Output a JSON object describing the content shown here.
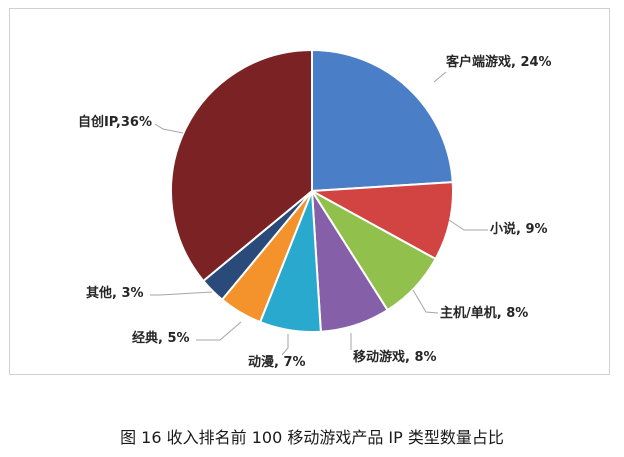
{
  "caption": "图 16  收入排名前 100 移动游戏产品 IP 类型数量占比",
  "chart_data": {
    "type": "pie",
    "title": "",
    "slices": [
      {
        "label": "客户端游戏, 24%",
        "value": 24,
        "color": "#4a7ec6"
      },
      {
        "label": "小说, 9%",
        "value": 9,
        "color": "#d24441"
      },
      {
        "label": "主机/单机, 8%",
        "value": 8,
        "color": "#92c04c"
      },
      {
        "label": "移动游戏, 8%",
        "value": 8,
        "color": "#8560a9"
      },
      {
        "label": "动漫, 7%",
        "value": 7,
        "color": "#2aa9cf"
      },
      {
        "label": "经典, 5%",
        "value": 5,
        "color": "#f4922b"
      },
      {
        "label": "其他, 3%",
        "value": 3,
        "color": "#2a4a79"
      },
      {
        "label": "自创IP,36%",
        "value": 36,
        "color": "#7b2224"
      }
    ]
  }
}
